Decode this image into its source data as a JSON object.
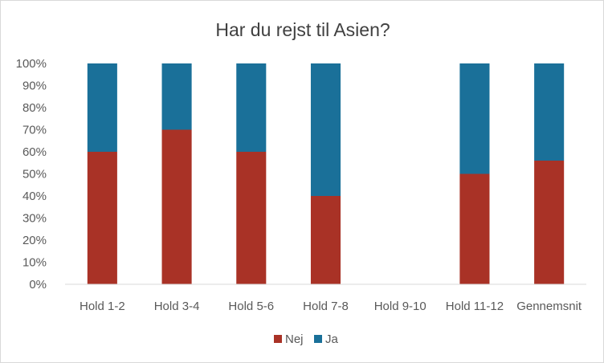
{
  "chart_data": {
    "type": "bar",
    "stacked": true,
    "percent_stacked": true,
    "title": "Har du rejst til Asien?",
    "xlabel": "",
    "ylabel": "",
    "categories": [
      "Hold 1-2",
      "Hold 3-4",
      "Hold 5-6",
      "Hold 7-8",
      "Hold 9-10",
      "Hold 11-12",
      "Gennemsnit"
    ],
    "series": [
      {
        "name": "Nej",
        "color": "#a93226",
        "values": [
          60,
          70,
          60,
          40,
          null,
          50,
          56
        ]
      },
      {
        "name": "Ja",
        "color": "#1a7099",
        "values": [
          40,
          30,
          40,
          60,
          null,
          50,
          44
        ]
      }
    ],
    "ylim": [
      0,
      100
    ],
    "yticks": [
      "0%",
      "10%",
      "20%",
      "30%",
      "40%",
      "50%",
      "60%",
      "70%",
      "80%",
      "90%",
      "100%"
    ],
    "grid": false,
    "legend_position": "bottom"
  }
}
